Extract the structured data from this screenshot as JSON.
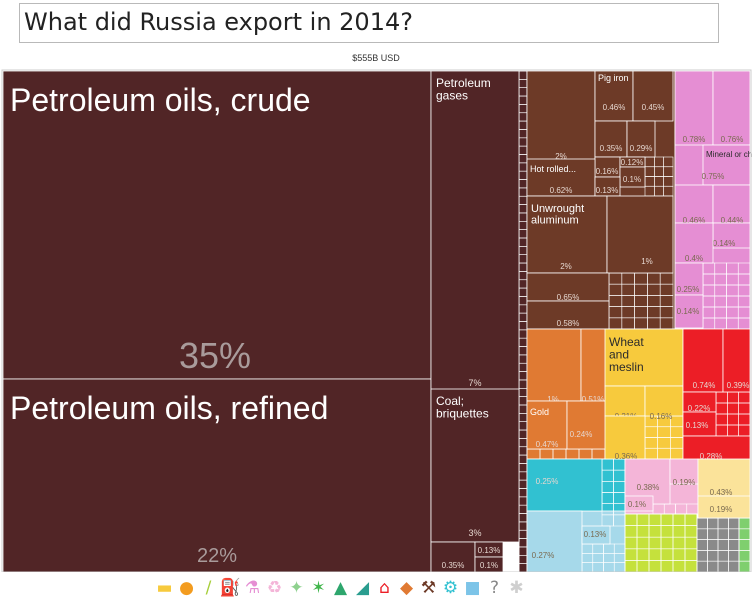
{
  "question": "What did Russia export in 2014?",
  "total_label": "$555B USD",
  "chart_data": {
    "type": "treemap",
    "title": "What did Russia export in 2014?",
    "total": "$555B USD",
    "items": [
      {
        "name": "Petroleum oils, crude",
        "value": 35,
        "pct": "35%",
        "color": "#512526"
      },
      {
        "name": "Petroleum oils, refined",
        "value": 22,
        "pct": "22%",
        "color": "#512526"
      },
      {
        "name": "Petroleum gases",
        "value": 7,
        "pct": "7%",
        "color": "#512526"
      },
      {
        "name": "Coal; briquettes",
        "value": 3,
        "pct": "3%",
        "color": "#512526"
      },
      {
        "name": "",
        "value": 0.35,
        "pct": "0.35%",
        "color": "#512526"
      },
      {
        "name": "",
        "value": 0.13,
        "pct": "0.13%",
        "color": "#512526"
      },
      {
        "name": "",
        "value": 0.1,
        "pct": "0.1%",
        "color": "#512526"
      },
      {
        "name": "",
        "value": 2,
        "pct": "2%",
        "color": "#6d3a27"
      },
      {
        "name": "Pig iron",
        "value": 0.46,
        "pct": "0.46%",
        "color": "#6d3a27"
      },
      {
        "name": "",
        "value": 0.45,
        "pct": "0.45%",
        "color": "#6d3a27"
      },
      {
        "name": "",
        "value": 0.35,
        "pct": "0.35%",
        "color": "#6d3a27"
      },
      {
        "name": "",
        "value": 0.29,
        "pct": "0.29%",
        "color": "#6d3a27"
      },
      {
        "name": "",
        "value": 0.16,
        "pct": "0.16%",
        "color": "#6d3a27"
      },
      {
        "name": "",
        "value": 0.12,
        "pct": "0.12%",
        "color": "#6d3a27"
      },
      {
        "name": "",
        "value": 0.1,
        "pct": "0.1%",
        "color": "#6d3a27"
      },
      {
        "name": "Hot rolled...",
        "value": 0.62,
        "pct": "0.62%",
        "color": "#6d3a27"
      },
      {
        "name": "",
        "value": 0.13,
        "pct": "0.13%",
        "color": "#6d3a27"
      },
      {
        "name": "Unwrought aluminum",
        "value": 2,
        "pct": "2%",
        "color": "#6d3a27"
      },
      {
        "name": "",
        "value": 1,
        "pct": "1%",
        "color": "#6d3a27"
      },
      {
        "name": "",
        "value": 0.65,
        "pct": "0.65%",
        "color": "#6d3a27"
      },
      {
        "name": "",
        "value": 0.58,
        "pct": "0.58%",
        "color": "#6d3a27"
      },
      {
        "name": "",
        "value": 0.78,
        "pct": "0.78%",
        "color": "#e58ed3"
      },
      {
        "name": "",
        "value": 0.76,
        "pct": "0.76%",
        "color": "#e58ed3"
      },
      {
        "name": "Mineral or chemical...",
        "value": 0.75,
        "pct": "0.75%",
        "color": "#e58ed3"
      },
      {
        "name": "",
        "value": 0.46,
        "pct": "0.46%",
        "color": "#e58ed3"
      },
      {
        "name": "",
        "value": 0.44,
        "pct": "0.44%",
        "color": "#e58ed3"
      },
      {
        "name": "",
        "value": 0.14,
        "pct": "0.14%",
        "color": "#e58ed3"
      },
      {
        "name": "",
        "value": 0.4,
        "pct": "0.4%",
        "color": "#e58ed3"
      },
      {
        "name": "",
        "value": 0.25,
        "pct": "0.25%",
        "color": "#e58ed3"
      },
      {
        "name": "",
        "value": 0.14,
        "pct": "0.14%",
        "color": "#e58ed3"
      },
      {
        "name": "",
        "value": 1,
        "pct": "1%",
        "color": "#e07a33"
      },
      {
        "name": "",
        "value": 0.51,
        "pct": "0.51%",
        "color": "#e07a33"
      },
      {
        "name": "Gold",
        "value": 0.47,
        "pct": "0.47%",
        "color": "#e07a33"
      },
      {
        "name": "",
        "value": 0.24,
        "pct": "0.24%",
        "color": "#e07a33"
      },
      {
        "name": "Wheat and meslin",
        "value": 1,
        "pct": "1%",
        "color": "#f7ca3d"
      },
      {
        "name": "",
        "value": 0.21,
        "pct": "0.21%",
        "color": "#f7ca3d"
      },
      {
        "name": "",
        "value": 0.16,
        "pct": "0.16%",
        "color": "#f7ca3d"
      },
      {
        "name": "",
        "value": 0.36,
        "pct": "0.36%",
        "color": "#f7ca3d"
      },
      {
        "name": "",
        "value": 0.74,
        "pct": "0.74%",
        "color": "#ec1e26"
      },
      {
        "name": "",
        "value": 0.39,
        "pct": "0.39%",
        "color": "#ec1e26"
      },
      {
        "name": "",
        "value": 0.22,
        "pct": "0.22%",
        "color": "#ec1e26"
      },
      {
        "name": "",
        "value": 0.13,
        "pct": "0.13%",
        "color": "#ec1e26"
      },
      {
        "name": "",
        "value": 0.28,
        "pct": "0.28%",
        "color": "#ec1e26"
      },
      {
        "name": "",
        "value": 0.25,
        "pct": "0.25%",
        "color": "#31c1d1"
      },
      {
        "name": "",
        "value": 0.38,
        "pct": "0.38%",
        "color": "#f4b5d8"
      },
      {
        "name": "",
        "value": 0.19,
        "pct": "0.19%",
        "color": "#f4b5d8"
      },
      {
        "name": "",
        "value": 0.1,
        "pct": "0.1%",
        "color": "#f4b5d8"
      },
      {
        "name": "",
        "value": 0.43,
        "pct": "0.43%",
        "color": "#fbe39a"
      },
      {
        "name": "",
        "value": 0.19,
        "pct": "0.19%",
        "color": "#fbe39a"
      },
      {
        "name": "",
        "value": 0.27,
        "pct": "0.27%",
        "color": "#a6d9ea"
      },
      {
        "name": "",
        "value": 0.13,
        "pct": "0.13%",
        "color": "#a6d9ea"
      }
    ]
  },
  "category_icons": [
    {
      "name": "animal-products-icon",
      "glyph": "▬",
      "color": "#f7ca3d"
    },
    {
      "name": "vegetable-products-icon",
      "glyph": "●",
      "color": "#f39c1f"
    },
    {
      "name": "foodstuffs-icon",
      "glyph": "/",
      "color": "#a6ce39"
    },
    {
      "name": "mineral-products-icon",
      "glyph": "⛽",
      "color": "#6d3a27"
    },
    {
      "name": "chemical-products-icon",
      "glyph": "⚗",
      "color": "#e58ed3"
    },
    {
      "name": "plastics-rubbers-icon",
      "glyph": "♻",
      "color": "#f4b5d8"
    },
    {
      "name": "animal-hides-icon",
      "glyph": "✦",
      "color": "#8fd18f"
    },
    {
      "name": "wood-products-icon",
      "glyph": "✶",
      "color": "#3fb54a"
    },
    {
      "name": "textiles-icon",
      "glyph": "▲",
      "color": "#2ea66d"
    },
    {
      "name": "footwear-icon",
      "glyph": "◢",
      "color": "#2a9d8f"
    },
    {
      "name": "stone-glass-icon",
      "glyph": "⌂",
      "color": "#ec1e26"
    },
    {
      "name": "precious-metals-icon",
      "glyph": "◆",
      "color": "#e07a33"
    },
    {
      "name": "metals-icon",
      "glyph": "⚒",
      "color": "#6d3a27"
    },
    {
      "name": "machines-icon",
      "glyph": "⚙",
      "color": "#31c1d1"
    },
    {
      "name": "transportation-icon",
      "glyph": "■",
      "color": "#7cc4e8"
    },
    {
      "name": "instruments-icon",
      "glyph": "?",
      "color": "#888888"
    },
    {
      "name": "miscellaneous-icon",
      "glyph": "✱",
      "color": "#cfcfcf"
    }
  ]
}
